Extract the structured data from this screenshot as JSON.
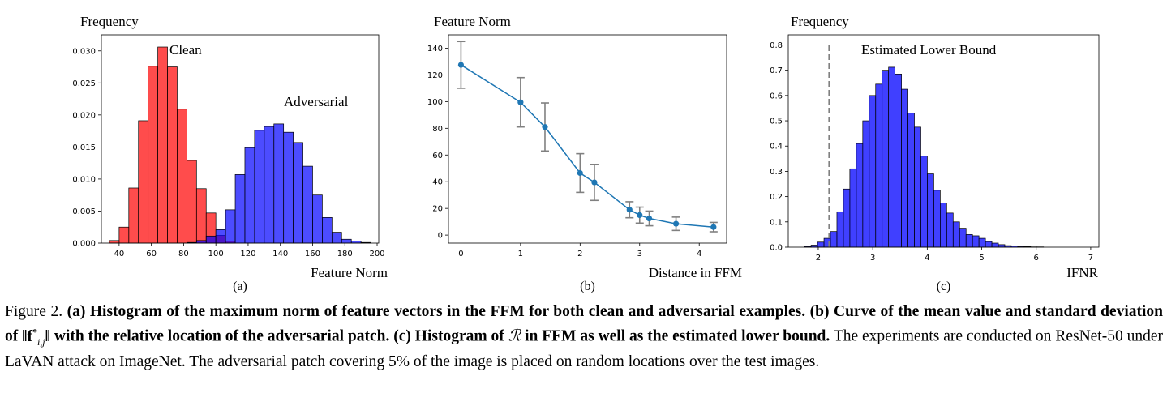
{
  "chart_data": [
    {
      "type": "histogram",
      "panel_label": "(a)",
      "ylabel": "Frequency",
      "xlabel": "Feature Norm",
      "xlim": [
        29,
        201
      ],
      "ylim": [
        0,
        0.0325
      ],
      "xticks": [
        "40",
        "60",
        "80",
        "100",
        "120",
        "140",
        "160",
        "180",
        "200"
      ],
      "xtick_values": [
        40,
        60,
        80,
        100,
        120,
        140,
        160,
        180,
        200
      ],
      "yticks": [
        "0.000",
        "0.005",
        "0.010",
        "0.015",
        "0.020",
        "0.025",
        "0.030"
      ],
      "ytick_values": [
        0,
        0.005,
        0.01,
        0.015,
        0.02,
        0.025,
        0.03
      ],
      "bin_width": 6,
      "series": [
        {
          "name": "Clean",
          "color": "#ff0000",
          "bin_starts": [
            34,
            40,
            46,
            52,
            58,
            64,
            70,
            76,
            82,
            88,
            94,
            100,
            106
          ],
          "values": [
            0.0004,
            0.0025,
            0.0086,
            0.0191,
            0.0276,
            0.0306,
            0.0275,
            0.0209,
            0.0129,
            0.0085,
            0.0047,
            0.0012,
            0.0003
          ]
        },
        {
          "name": "Adversarial",
          "color": "#0000ff",
          "bin_starts": [
            82,
            88,
            94,
            100,
            106,
            112,
            118,
            124,
            130,
            136,
            142,
            148,
            154,
            160,
            166,
            172,
            178,
            184,
            190
          ],
          "values": [
            0.0001,
            0.0004,
            0.0011,
            0.0021,
            0.0052,
            0.0107,
            0.0149,
            0.0176,
            0.0182,
            0.0186,
            0.0173,
            0.0157,
            0.012,
            0.0075,
            0.004,
            0.0017,
            0.0006,
            0.0003,
            0.0001
          ]
        }
      ],
      "annotations": [
        "Clean",
        "Adversarial"
      ]
    },
    {
      "type": "line",
      "panel_label": "(b)",
      "ylabel": "Feature Norm",
      "xlabel": "Distance in FFM",
      "xlim": [
        -0.21,
        4.46
      ],
      "ylim": [
        -6,
        150
      ],
      "xticks": [
        "0",
        "1",
        "2",
        "3",
        "4"
      ],
      "xtick_values": [
        0,
        1,
        2,
        3,
        4
      ],
      "yticks": [
        "0",
        "20",
        "40",
        "60",
        "80",
        "100",
        "120",
        "140"
      ],
      "ytick_values": [
        0,
        20,
        40,
        60,
        80,
        100,
        120,
        140
      ],
      "color": "#1f77b4",
      "error_color": "#808080",
      "x": [
        0,
        1,
        1.41,
        2,
        2.24,
        2.83,
        3,
        3.16,
        3.61,
        4.24
      ],
      "y": [
        127.5,
        99.5,
        81,
        46.5,
        39.5,
        19,
        15,
        12.5,
        8.5,
        6
      ],
      "yerr": [
        17.5,
        18.5,
        18,
        14.5,
        13.5,
        6,
        6,
        5.5,
        5,
        3.5
      ]
    },
    {
      "type": "histogram",
      "panel_label": "(c)",
      "ylabel": "Frequency",
      "xlabel": "IFNR",
      "xlim": [
        1.45,
        7.15
      ],
      "ylim": [
        0,
        0.84
      ],
      "xticks": [
        "2",
        "3",
        "4",
        "5",
        "6",
        "7"
      ],
      "xtick_values": [
        2,
        3,
        4,
        5,
        6,
        7
      ],
      "yticks": [
        "0.0",
        "0.1",
        "0.2",
        "0.3",
        "0.4",
        "0.5",
        "0.6",
        "0.7",
        "0.8"
      ],
      "ytick_values": [
        0,
        0.1,
        0.2,
        0.3,
        0.4,
        0.5,
        0.6,
        0.7,
        0.8
      ],
      "color": "#0000ff",
      "bin_width": 0.1185,
      "bin_start": 1.75,
      "values": [
        0.003,
        0.008,
        0.02,
        0.035,
        0.062,
        0.14,
        0.23,
        0.31,
        0.41,
        0.5,
        0.6,
        0.645,
        0.7,
        0.712,
        0.685,
        0.625,
        0.53,
        0.475,
        0.36,
        0.29,
        0.225,
        0.175,
        0.135,
        0.1,
        0.075,
        0.05,
        0.045,
        0.035,
        0.022,
        0.016,
        0.01,
        0.006,
        0.005,
        0.003,
        0.002,
        0.001,
        0.001
      ],
      "lower_bound": 2.2,
      "lower_bound_label": "Estimated Lower Bound"
    }
  ],
  "caption": {
    "prefix": "Figure 2. ",
    "bold_a": "(a) Histogram of the maximum norm of feature vectors in the FFM for both clean and adversarial examples. (b) Curve of the mean value and standard deviation of ",
    "math_f": "‖f",
    "math_sup": "*",
    "math_sub": "i,j",
    "math_close": "‖",
    "bold_b": " with the relative location of the adversarial patch. (c) Histogram of ",
    "math_r": "ℛ",
    "bold_c": " in FFM as well as the estimated lower bound.",
    "rest": " The experiments are conducted on ResNet-50 under LaVAN attack on ImageNet. The adversarial patch covering 5% of the image is placed on random locations over the test images."
  }
}
